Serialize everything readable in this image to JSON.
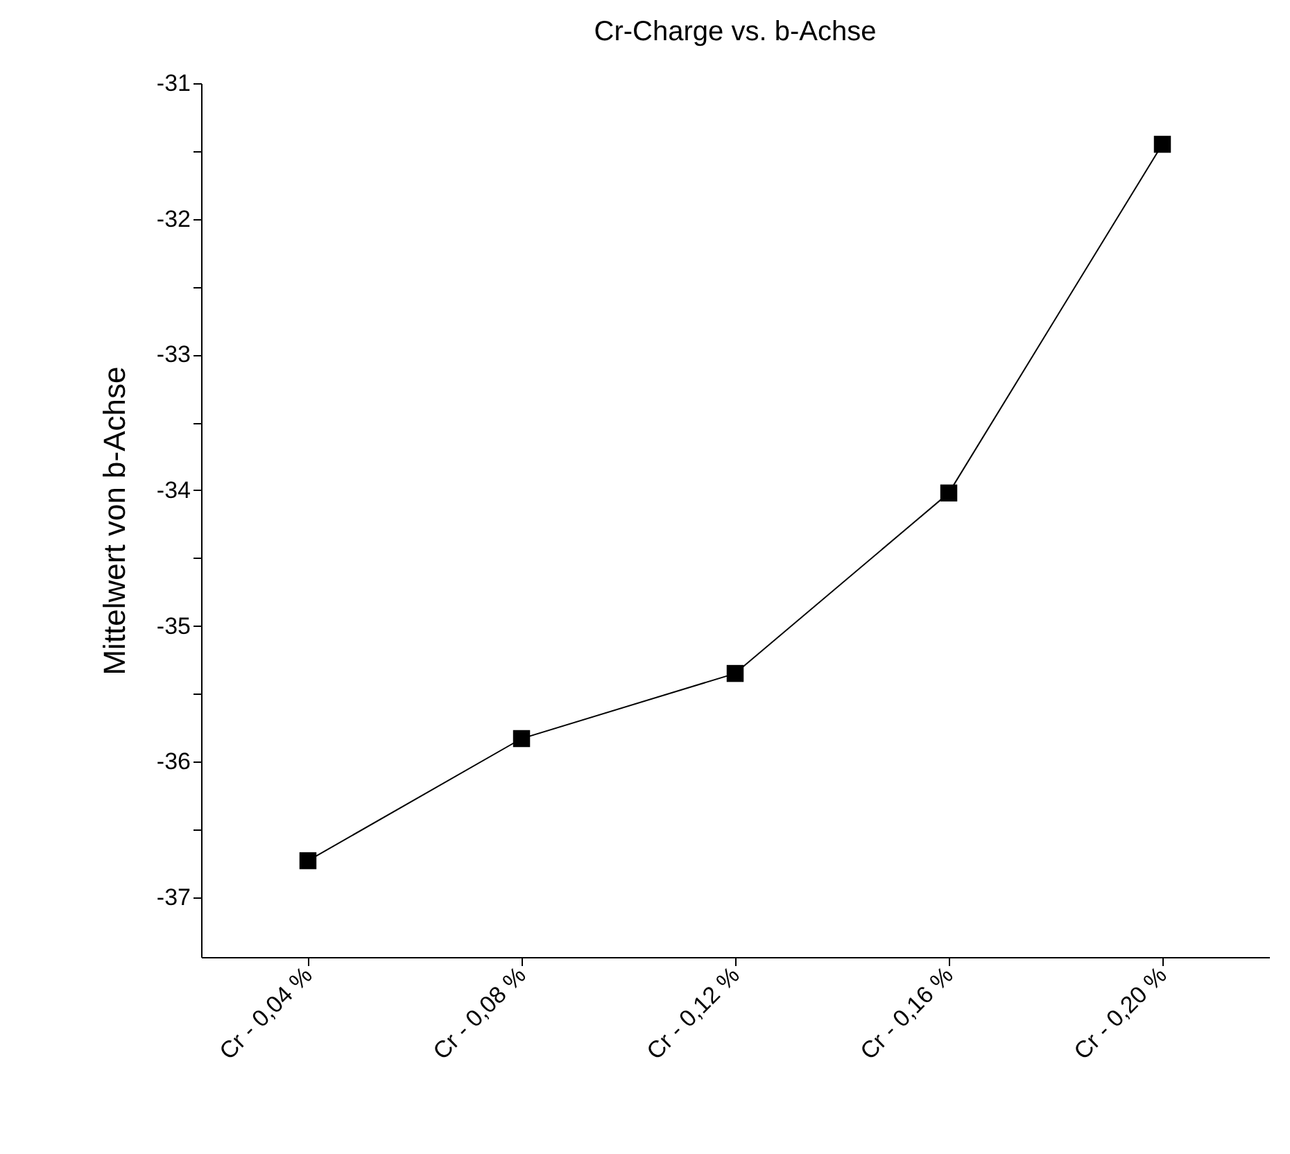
{
  "chart_data": {
    "type": "line",
    "title": "Cr-Charge vs. b-Achse",
    "ylabel": "Mittelwert von b-Achse",
    "categories": [
      "Cr - 0,04 %",
      "Cr - 0,08 %",
      "Cr - 0,12 %",
      "Cr - 0,16 %",
      "Cr - 0,20 %"
    ],
    "series": [
      {
        "color": "#000000",
        "values": [
          -36.73,
          -35.83,
          -35.35,
          -34.02,
          -31.45
        ]
      }
    ],
    "ylim": [
      -37.44,
      -31
    ],
    "yticks": [
      -37,
      {
        "value": -36.5,
        "label": null
      },
      -36,
      {
        "value": -35.5,
        "label": null
      },
      -35,
      {
        "value": -34.5,
        "label": null
      },
      -34,
      {
        "value": -33.5,
        "label": null
      },
      -33,
      {
        "value": -32.5,
        "label": null
      },
      -32,
      {
        "value": -31.5,
        "label": null
      },
      -31
    ],
    "grid": false,
    "marker": "square",
    "line_style": "solid"
  }
}
